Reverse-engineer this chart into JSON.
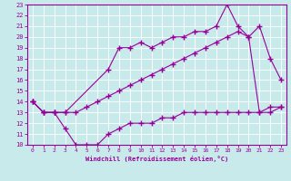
{
  "xlabel": "Windchill (Refroidissement éolien,°C)",
  "bg_color": "#c8eaea",
  "line_color": "#990099",
  "xlim": [
    -0.5,
    23.5
  ],
  "ylim": [
    10,
    23
  ],
  "xticks": [
    0,
    1,
    2,
    3,
    4,
    5,
    6,
    7,
    8,
    9,
    10,
    11,
    12,
    13,
    14,
    15,
    16,
    17,
    18,
    19,
    20,
    21,
    22,
    23
  ],
  "yticks": [
    10,
    11,
    12,
    13,
    14,
    15,
    16,
    17,
    18,
    19,
    20,
    21,
    22,
    23
  ],
  "line1_x": [
    0,
    1,
    2,
    3,
    7,
    8,
    9,
    10,
    11,
    12,
    13,
    14,
    15,
    16,
    17,
    18,
    19,
    20,
    21,
    22,
    23
  ],
  "line1_y": [
    14,
    13,
    13,
    13,
    17,
    19,
    19,
    19.5,
    19,
    19.5,
    20,
    20,
    20.5,
    20.5,
    21,
    23,
    21,
    20,
    21,
    18,
    16
  ],
  "line2_x": [
    0,
    1,
    2,
    3,
    4,
    5,
    6,
    7,
    8,
    9,
    10,
    11,
    12,
    13,
    14,
    15,
    16,
    17,
    18,
    19,
    20,
    21,
    22,
    23
  ],
  "line2_y": [
    14,
    13,
    13,
    13,
    13,
    13.5,
    14,
    14.5,
    15,
    15.5,
    16,
    16.5,
    17,
    17.5,
    18,
    18.5,
    19,
    19.5,
    20,
    20.5,
    20,
    13,
    13.5,
    13.5
  ],
  "line3_x": [
    0,
    1,
    2,
    3,
    4,
    5,
    6,
    7,
    8,
    9,
    10,
    11,
    12,
    13,
    14,
    15,
    16,
    17,
    18,
    19,
    20,
    21,
    22,
    23
  ],
  "line3_y": [
    14,
    13,
    13,
    11.5,
    10,
    10,
    10,
    11,
    11.5,
    12,
    12,
    12,
    12.5,
    12.5,
    13,
    13,
    13,
    13,
    13,
    13,
    13,
    13,
    13,
    13.5
  ]
}
